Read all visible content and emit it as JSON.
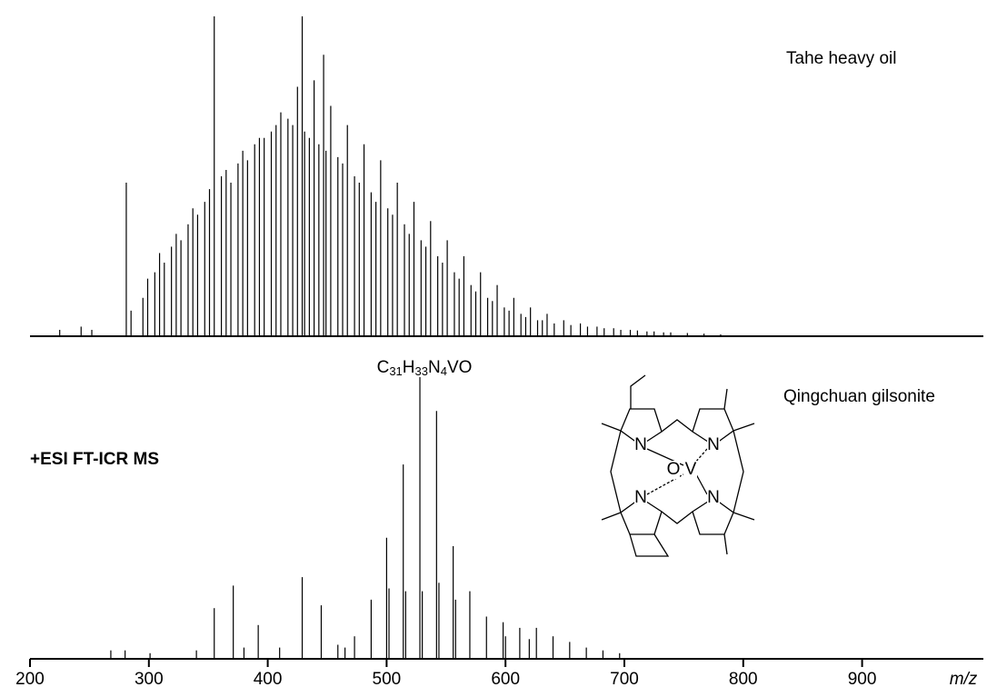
{
  "chart_data": [
    {
      "type": "stem",
      "title": "Tahe heavy oil",
      "xlim": [
        200,
        1002
      ],
      "ylim": [
        0,
        100
      ],
      "x": [
        225,
        243,
        252,
        281,
        285,
        295,
        299,
        305,
        309,
        313,
        319,
        323,
        327,
        333,
        337,
        341,
        347,
        351,
        355,
        361,
        365,
        369,
        375,
        379,
        383,
        389,
        393,
        397,
        403,
        407,
        411,
        417,
        421,
        425,
        429,
        431,
        435,
        439,
        443,
        447,
        449,
        453,
        459,
        463,
        467,
        473,
        477,
        481,
        487,
        491,
        495,
        501,
        505,
        509,
        515,
        519,
        523,
        529,
        533,
        537,
        543,
        547,
        551,
        557,
        561,
        565,
        571,
        575,
        579,
        585,
        589,
        593,
        599,
        603,
        607,
        613,
        617,
        621,
        627,
        631,
        635,
        641,
        649,
        655,
        663,
        669,
        677,
        683,
        691,
        697,
        705,
        711,
        719,
        725,
        733,
        739,
        753,
        767,
        781
      ],
      "values": [
        2,
        3,
        2,
        48,
        8,
        12,
        18,
        20,
        26,
        23,
        28,
        32,
        30,
        35,
        40,
        38,
        42,
        46,
        100,
        50,
        52,
        48,
        54,
        58,
        55,
        60,
        62,
        62,
        64,
        66,
        70,
        68,
        66,
        78,
        100,
        64,
        62,
        80,
        60,
        88,
        58,
        72,
        56,
        54,
        66,
        50,
        48,
        60,
        45,
        42,
        55,
        40,
        38,
        48,
        35,
        32,
        42,
        30,
        28,
        36,
        25,
        23,
        30,
        20,
        18,
        25,
        16,
        14,
        20,
        12,
        11,
        16,
        9,
        8,
        12,
        7,
        6,
        9,
        5,
        5,
        7,
        4,
        5,
        3.5,
        4,
        3,
        3,
        2.5,
        2.5,
        2,
        2,
        1.8,
        1.5,
        1.5,
        1.2,
        1.2,
        1,
        0.8,
        0.6
      ]
    },
    {
      "type": "stem",
      "title": "Qingchuan gilsonite",
      "subtitle": "+ESI FT-ICR MS",
      "annotation": "C31H33N4VO",
      "x_label": "m/z",
      "structure_labels": [
        "N",
        "N",
        "N",
        "N",
        "O",
        "V"
      ],
      "xlim": [
        200,
        1002
      ],
      "ylim": [
        0,
        100
      ],
      "xticks": [
        200,
        300,
        400,
        500,
        600,
        700,
        800,
        900
      ],
      "x": [
        268,
        280,
        301,
        340,
        355,
        371,
        380,
        392,
        410,
        429,
        445,
        459,
        465,
        473,
        487,
        500,
        502,
        514,
        516,
        528,
        530,
        542,
        544,
        556,
        558,
        570,
        584,
        598,
        600,
        612,
        620,
        626,
        640,
        654,
        668,
        682,
        696
      ],
      "values": [
        3,
        3,
        2,
        3,
        18,
        26,
        4,
        12,
        4,
        29,
        19,
        5,
        4,
        8,
        21,
        43,
        25,
        69,
        24,
        100,
        24,
        88,
        27,
        40,
        21,
        24,
        15,
        13,
        8,
        11,
        7,
        11,
        8,
        6,
        4,
        3,
        2
      ]
    }
  ]
}
